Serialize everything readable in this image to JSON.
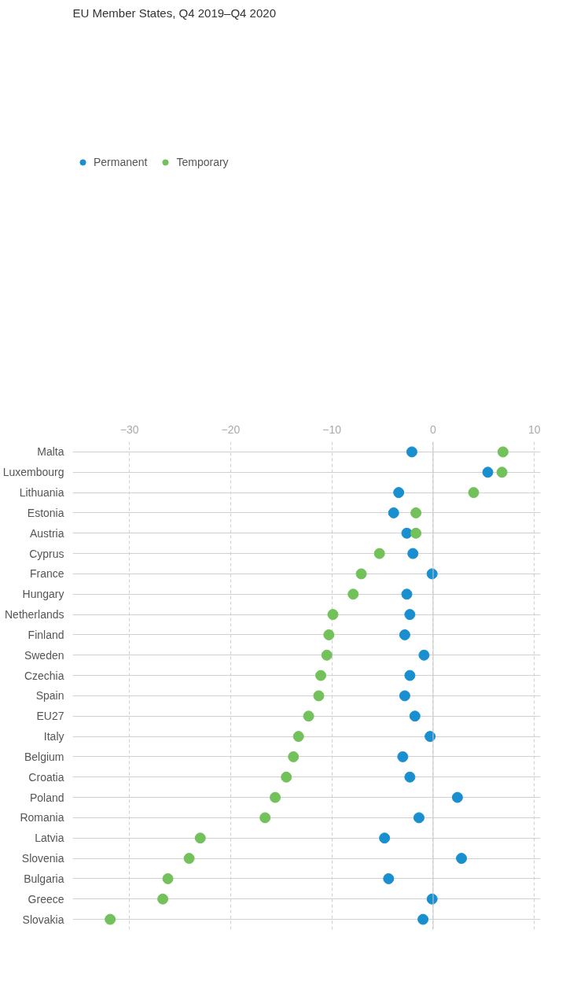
{
  "chart_data": {
    "type": "scatter",
    "title": "EU Member States, Q4 2019–Q4 2020",
    "categories": [
      "Malta",
      "Luxembourg",
      "Lithuania",
      "Estonia",
      "Austria",
      "Cyprus",
      "France",
      "Hungary",
      "Netherlands",
      "Finland",
      "Sweden",
      "Czechia",
      "Spain",
      "EU27",
      "Italy",
      "Belgium",
      "Croatia",
      "Poland",
      "Romania",
      "Latvia",
      "Slovenia",
      "Bulgaria",
      "Greece",
      "Slovakia"
    ],
    "orientation": "horizontal",
    "series": [
      {
        "name": "Permanent",
        "color": "#1a8fd0",
        "values": [
          -2.1,
          5.4,
          -3.4,
          -3.9,
          -2.6,
          -2.0,
          -0.1,
          -2.6,
          -2.3,
          -2.8,
          -0.9,
          -2.3,
          -2.8,
          -1.8,
          -0.3,
          -3.0,
          -2.3,
          2.4,
          -1.4,
          -4.8,
          2.8,
          -4.4,
          -0.1,
          -1.0
        ]
      },
      {
        "name": "Temporary",
        "color": "#72c15a",
        "values": [
          6.9,
          6.8,
          4.0,
          -1.7,
          -1.7,
          -5.3,
          -7.1,
          -7.9,
          -9.9,
          -10.3,
          -10.5,
          -11.1,
          -11.3,
          -12.3,
          -13.3,
          -13.8,
          -14.5,
          -15.6,
          -16.6,
          -23.0,
          -24.1,
          -26.2,
          -26.7,
          -31.9
        ]
      }
    ],
    "xlim": [
      -35.6,
      10.6
    ],
    "xticks": [
      {
        "value": -30,
        "label": "−30"
      },
      {
        "value": -20,
        "label": "−20"
      },
      {
        "value": -10,
        "label": "−10"
      },
      0,
      10
    ],
    "ref_lines": [
      {
        "axis": "x",
        "value": 0,
        "color": "#c8c8c8",
        "line_style": "solid"
      }
    ],
    "grid": true,
    "legend": "top left",
    "marker": "circle"
  }
}
